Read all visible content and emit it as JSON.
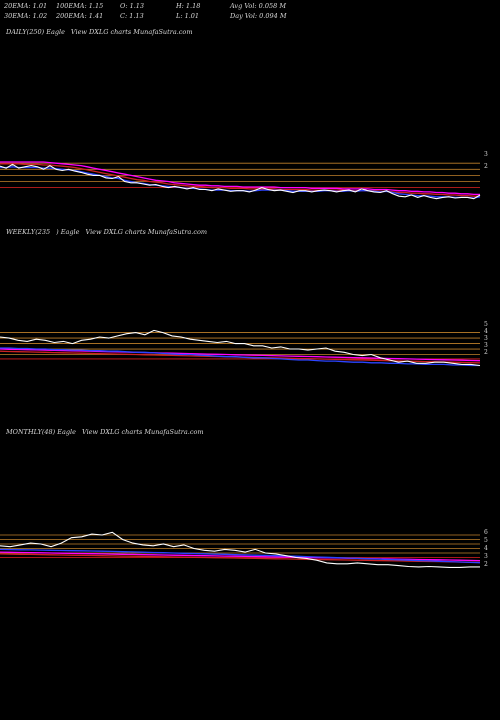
{
  "stats": [
    [
      "20EMA: 1.01",
      "100EMA: 1.15",
      "O: 1.13",
      "H: 1.18",
      "Avg Vol: 0.058  M"
    ],
    [
      "30EMA: 1.02",
      "200EMA: 1.41",
      "C: 1.13",
      "L: 1.01",
      "Day Vol: 0.094  M"
    ]
  ],
  "colors": {
    "price": "#ffffff",
    "ema_fast": "#2b44ff",
    "ema_mid": "#ff00ff",
    "ema_slow": "#cc2222",
    "level": "#c0802a",
    "level_red": "#dd2222"
  },
  "chart_data": [
    {
      "type": "line",
      "title_parts": [
        "DAILY(250) Eagle",
        "View  DXLG charts MunafaSutra.com"
      ],
      "right_ticks": [
        "3",
        "2"
      ],
      "series": [
        {
          "role": "price",
          "values": [
            1.95,
            1.92,
            1.98,
            1.92,
            1.94,
            1.96,
            1.94,
            1.9,
            1.96,
            1.9,
            1.88,
            1.9,
            1.87,
            1.85,
            1.82,
            1.8,
            1.8,
            1.76,
            1.75,
            1.78,
            1.7,
            1.68,
            1.68,
            1.66,
            1.64,
            1.65,
            1.62,
            1.6,
            1.62,
            1.6,
            1.58,
            1.6,
            1.57,
            1.57,
            1.55,
            1.58,
            1.56,
            1.54,
            1.55,
            1.55,
            1.53,
            1.56,
            1.6,
            1.57,
            1.55,
            1.56,
            1.54,
            1.52,
            1.55,
            1.55,
            1.53,
            1.55,
            1.56,
            1.55,
            1.53,
            1.55,
            1.56,
            1.53,
            1.58,
            1.55,
            1.53,
            1.52,
            1.55,
            1.5,
            1.46,
            1.45,
            1.48,
            1.44,
            1.47,
            1.44,
            1.42,
            1.44,
            1.45,
            1.43,
            1.44,
            1.44,
            1.42,
            1.48
          ]
        },
        {
          "role": "ema_fast",
          "values": [
            1.93,
            1.93,
            1.94,
            1.93,
            1.93,
            1.93,
            1.93,
            1.92,
            1.92,
            1.91,
            1.9,
            1.89,
            1.88,
            1.86,
            1.84,
            1.82,
            1.8,
            1.78,
            1.76,
            1.75,
            1.72,
            1.7,
            1.68,
            1.67,
            1.65,
            1.64,
            1.63,
            1.62,
            1.61,
            1.6,
            1.59,
            1.59,
            1.58,
            1.57,
            1.56,
            1.56,
            1.56,
            1.55,
            1.55,
            1.55,
            1.54,
            1.55,
            1.56,
            1.56,
            1.56,
            1.56,
            1.55,
            1.54,
            1.54,
            1.54,
            1.54,
            1.54,
            1.55,
            1.55,
            1.54,
            1.54,
            1.55,
            1.54,
            1.55,
            1.55,
            1.54,
            1.53,
            1.54,
            1.52,
            1.5,
            1.49,
            1.48,
            1.47,
            1.47,
            1.46,
            1.45,
            1.45,
            1.45,
            1.44,
            1.44,
            1.44,
            1.43,
            1.45
          ]
        },
        {
          "role": "ema_mid",
          "values": [
            2.02,
            2.02,
            2.02,
            2.02,
            2.02,
            2.02,
            2.02,
            2.02,
            2.01,
            2.0,
            1.99,
            1.98,
            1.97,
            1.96,
            1.94,
            1.92,
            1.9,
            1.88,
            1.86,
            1.84,
            1.82,
            1.8,
            1.78,
            1.76,
            1.74,
            1.72,
            1.71,
            1.7,
            1.68,
            1.67,
            1.66,
            1.65,
            1.64,
            1.64,
            1.63,
            1.63,
            1.62,
            1.62,
            1.62,
            1.61,
            1.61,
            1.61,
            1.61,
            1.61,
            1.61,
            1.6,
            1.6,
            1.6,
            1.6,
            1.6,
            1.59,
            1.59,
            1.59,
            1.59,
            1.59,
            1.58,
            1.58,
            1.58,
            1.58,
            1.58,
            1.57,
            1.57,
            1.57,
            1.56,
            1.55,
            1.55,
            1.54,
            1.54,
            1.53,
            1.53,
            1.52,
            1.52,
            1.51,
            1.51,
            1.5,
            1.5,
            1.49,
            1.49
          ]
        },
        {
          "role": "ema_slow",
          "values": [
            1.99,
            1.99,
            1.99,
            1.99,
            1.98,
            1.98,
            1.98,
            1.97,
            1.97,
            1.96,
            1.95,
            1.94,
            1.93,
            1.91,
            1.89,
            1.87,
            1.85,
            1.83,
            1.81,
            1.79,
            1.77,
            1.75,
            1.73,
            1.72,
            1.7,
            1.69,
            1.68,
            1.66,
            1.65,
            1.64,
            1.63,
            1.62,
            1.62,
            1.61,
            1.6,
            1.6,
            1.6,
            1.59,
            1.59,
            1.59,
            1.58,
            1.58,
            1.58,
            1.58,
            1.58,
            1.57,
            1.57,
            1.57,
            1.57,
            1.57,
            1.56,
            1.56,
            1.56,
            1.56,
            1.56,
            1.56,
            1.55,
            1.55,
            1.55,
            1.55,
            1.55,
            1.54,
            1.54,
            1.53,
            1.52,
            1.52,
            1.51,
            1.51,
            1.5,
            1.5,
            1.49,
            1.49,
            1.48,
            1.48,
            1.47,
            1.47,
            1.46,
            1.46
          ]
        }
      ],
      "levels": [
        2.0,
        1.9,
        1.8,
        1.7,
        1.6
      ],
      "ylim": [
        1.3,
        2.15
      ]
    },
    {
      "type": "line",
      "title_parts": [
        "WEEKLY(235",
        ") Eagle",
        "View  DXLG charts MunafaSutra.com"
      ],
      "right_ticks": [
        "5",
        "4",
        "3",
        "3",
        "2"
      ],
      "series": [
        {
          "role": "price",
          "values": [
            4.6,
            4.5,
            4.3,
            4.2,
            4.4,
            4.3,
            4.1,
            4.2,
            4.0,
            4.3,
            4.4,
            4.6,
            4.5,
            4.7,
            4.9,
            5.0,
            4.8,
            5.2,
            5.0,
            4.7,
            4.6,
            4.4,
            4.3,
            4.2,
            4.1,
            4.2,
            4.0,
            4.0,
            3.8,
            3.8,
            3.6,
            3.7,
            3.5,
            3.5,
            3.4,
            3.5,
            3.6,
            3.3,
            3.2,
            3.0,
            2.9,
            3.0,
            2.7,
            2.5,
            2.3,
            2.4,
            2.2,
            2.2,
            2.3,
            2.3,
            2.2,
            2.1,
            2.1,
            2.0
          ]
        },
        {
          "role": "ema_fast",
          "values": [
            3.6,
            3.6,
            3.55,
            3.55,
            3.5,
            3.5,
            3.45,
            3.45,
            3.4,
            3.4,
            3.35,
            3.35,
            3.3,
            3.3,
            3.25,
            3.2,
            3.2,
            3.15,
            3.1,
            3.05,
            3.0,
            3.0,
            2.95,
            2.9,
            2.85,
            2.8,
            2.8,
            2.75,
            2.7,
            2.7,
            2.65,
            2.6,
            2.55,
            2.5,
            2.5,
            2.45,
            2.4,
            2.4,
            2.35,
            2.3,
            2.3,
            2.25,
            2.25,
            2.2,
            2.2,
            2.15,
            2.15,
            2.1,
            2.1,
            2.1,
            2.05,
            2.05,
            2.0,
            2.0
          ]
        },
        {
          "role": "ema_mid",
          "values": [
            3.5,
            3.48,
            3.46,
            3.44,
            3.42,
            3.4,
            3.38,
            3.36,
            3.34,
            3.32,
            3.3,
            3.28,
            3.26,
            3.24,
            3.22,
            3.2,
            3.18,
            3.16,
            3.14,
            3.12,
            3.1,
            3.08,
            3.06,
            3.04,
            3.02,
            3.0,
            2.98,
            2.96,
            2.94,
            2.92,
            2.9,
            2.88,
            2.86,
            2.84,
            2.82,
            2.8,
            2.78,
            2.76,
            2.74,
            2.72,
            2.7,
            2.68,
            2.66,
            2.64,
            2.62,
            2.6,
            2.58,
            2.56,
            2.54,
            2.52,
            2.5,
            2.48,
            2.46,
            2.44
          ]
        },
        {
          "role": "ema_slow",
          "values": [
            3.3,
            3.28,
            3.26,
            3.24,
            3.22,
            3.2,
            3.18,
            3.16,
            3.14,
            3.12,
            3.1,
            3.08,
            3.06,
            3.04,
            3.02,
            3.0,
            2.98,
            2.96,
            2.94,
            2.92,
            2.9,
            2.88,
            2.86,
            2.84,
            2.82,
            2.8,
            2.78,
            2.76,
            2.74,
            2.72,
            2.7,
            2.68,
            2.66,
            2.64,
            2.62,
            2.6,
            2.58,
            2.56,
            2.54,
            2.52,
            2.5,
            2.48,
            2.46,
            2.44,
            2.42,
            2.4,
            2.38,
            2.36,
            2.34,
            2.32,
            2.3,
            2.28,
            2.26,
            2.24
          ]
        }
      ],
      "levels": [
        5.0,
        4.5,
        4.0,
        3.5,
        3.0,
        2.6
      ],
      "ylim": [
        1.5,
        5.6
      ]
    },
    {
      "type": "line",
      "title_parts": [
        "MONTHLY(48) Eagle",
        "View  DXLG charts MunafaSutra.com"
      ],
      "right_ticks": [
        "6",
        "5",
        "4",
        "3",
        "2"
      ],
      "series": [
        {
          "role": "price",
          "values": [
            4.3,
            4.2,
            4.4,
            4.6,
            4.5,
            4.2,
            4.6,
            5.2,
            5.3,
            5.6,
            5.5,
            5.8,
            5.0,
            4.6,
            4.4,
            4.3,
            4.5,
            4.2,
            4.4,
            4.0,
            3.8,
            3.7,
            3.9,
            3.8,
            3.6,
            3.9,
            3.5,
            3.4,
            3.2,
            3.0,
            2.9,
            2.7,
            2.4,
            2.3,
            2.3,
            2.4,
            2.3,
            2.2,
            2.2,
            2.1,
            2.0,
            1.95,
            2.0,
            1.95,
            1.9,
            1.9,
            1.95,
            1.95
          ]
        },
        {
          "role": "ema_fast",
          "values": [
            3.9,
            3.88,
            3.86,
            3.84,
            3.82,
            3.8,
            3.78,
            3.76,
            3.74,
            3.72,
            3.7,
            3.68,
            3.65,
            3.62,
            3.59,
            3.56,
            3.53,
            3.5,
            3.47,
            3.44,
            3.41,
            3.38,
            3.35,
            3.32,
            3.29,
            3.26,
            3.23,
            3.2,
            3.17,
            3.14,
            3.1,
            3.06,
            3.02,
            2.98,
            2.94,
            2.9,
            2.86,
            2.82,
            2.78,
            2.74,
            2.7,
            2.66,
            2.62,
            2.58,
            2.54,
            2.5,
            2.46,
            2.42
          ]
        },
        {
          "role": "ema_mid",
          "values": [
            3.6,
            3.58,
            3.56,
            3.54,
            3.52,
            3.5,
            3.48,
            3.46,
            3.44,
            3.42,
            3.4,
            3.38,
            3.36,
            3.34,
            3.32,
            3.3,
            3.28,
            3.26,
            3.24,
            3.22,
            3.2,
            3.18,
            3.16,
            3.14,
            3.12,
            3.1,
            3.08,
            3.06,
            3.04,
            3.02,
            3.0,
            2.98,
            2.96,
            2.94,
            2.92,
            2.9,
            2.88,
            2.86,
            2.84,
            2.82,
            2.8,
            2.78,
            2.76,
            2.74,
            2.72,
            2.7,
            2.68,
            2.66
          ]
        },
        {
          "role": "ema_slow",
          "values": [
            3.4,
            3.38,
            3.36,
            3.34,
            3.32,
            3.3,
            3.28,
            3.26,
            3.24,
            3.22,
            3.2,
            3.18,
            3.16,
            3.14,
            3.12,
            3.1,
            3.08,
            3.06,
            3.04,
            3.02,
            3.0,
            2.98,
            2.96,
            2.94,
            2.92,
            2.9,
            2.88,
            2.86,
            2.84,
            2.82,
            2.8,
            2.78,
            2.76,
            2.74,
            2.72,
            2.7,
            2.68,
            2.66,
            2.64,
            2.62,
            2.6,
            2.58,
            2.56,
            2.54,
            2.52,
            2.5,
            2.48,
            2.46
          ]
        }
      ],
      "levels": [
        5.5,
        5.0,
        4.5,
        4.0,
        3.5,
        3.0
      ],
      "ylim": [
        1.5,
        6.5
      ]
    }
  ]
}
